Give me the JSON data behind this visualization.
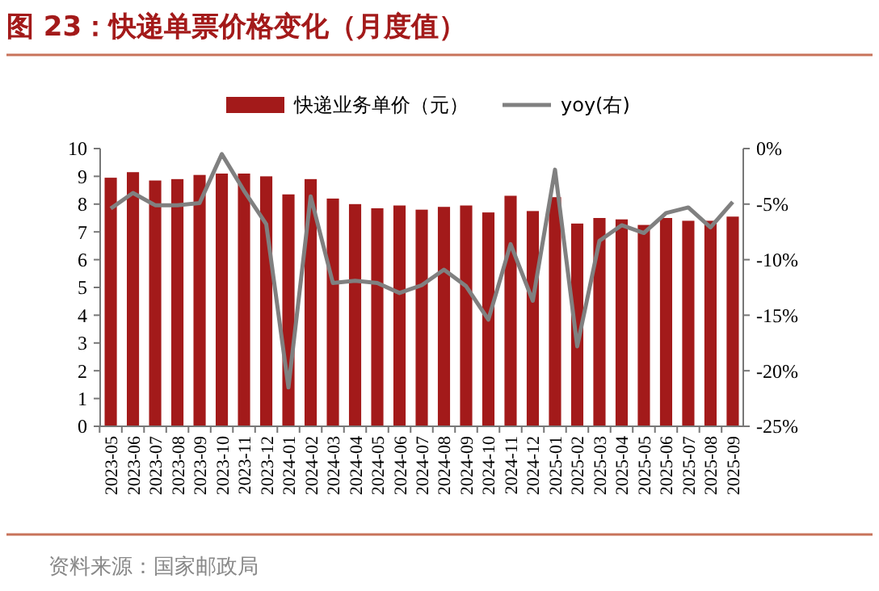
{
  "chart_data": {
    "type": "bar",
    "title": "图 23：快递单票价格变化（月度值）",
    "annotations": [
      "资料来源：国家邮政局"
    ],
    "categories": [
      "2023-05",
      "2023-06",
      "2023-07",
      "2023-08",
      "2023-09",
      "2023-10",
      "2023-11",
      "2023-12",
      "2024-01",
      "2024-02",
      "2024-03",
      "2024-04",
      "2024-05",
      "2024-06",
      "2024-07",
      "2024-08",
      "2024-09",
      "2024-10",
      "2024-11",
      "2024-12",
      "2025-01",
      "2025-02",
      "2025-03",
      "2025-04",
      "2025-05",
      "2025-06",
      "2025-07",
      "2025-08",
      "2025-09"
    ],
    "series": [
      {
        "name": "快递业务单价（元）",
        "color": "#a31a1a",
        "values": [
          8.95,
          9.15,
          8.85,
          8.9,
          9.05,
          9.1,
          9.1,
          9.0,
          8.35,
          8.9,
          8.2,
          8.0,
          7.85,
          7.95,
          7.8,
          7.9,
          7.95,
          7.7,
          8.3,
          7.75,
          8.25,
          7.3,
          7.5,
          7.45,
          7.25,
          7.5,
          7.4,
          7.4,
          7.55
        ]
      },
      {
        "name": "yoy(右)",
        "type": "line",
        "axis": "y2",
        "color": "#808080",
        "values": [
          -5.4,
          -4.0,
          -5.1,
          -5.1,
          -4.9,
          -0.5,
          -3.8,
          -6.8,
          -21.5,
          -4.3,
          -12.1,
          -11.9,
          -12.1,
          -13.0,
          -12.3,
          -10.9,
          -12.4,
          -15.4,
          -8.6,
          -13.7,
          -1.9,
          -17.8,
          -8.3,
          -6.9,
          -7.6,
          -5.8,
          -5.3,
          -7.1,
          -4.8
        ]
      }
    ],
    "ylim": [
      0,
      10
    ],
    "yticks": [
      0,
      1,
      2,
      3,
      4,
      5,
      6,
      7,
      8,
      9,
      10
    ],
    "y2lim": [
      -25,
      0
    ],
    "y2ticks": [
      {
        "value": -25,
        "label": "-25%"
      },
      {
        "value": -20,
        "label": "-20%"
      },
      {
        "value": -15,
        "label": "-15%"
      },
      {
        "value": -10,
        "label": "-10%"
      },
      {
        "value": -5,
        "label": "-5%"
      },
      {
        "value": 0,
        "label": "0%"
      }
    ],
    "legend": "top",
    "grid": false,
    "marker": "none",
    "line_style": "solid"
  }
}
